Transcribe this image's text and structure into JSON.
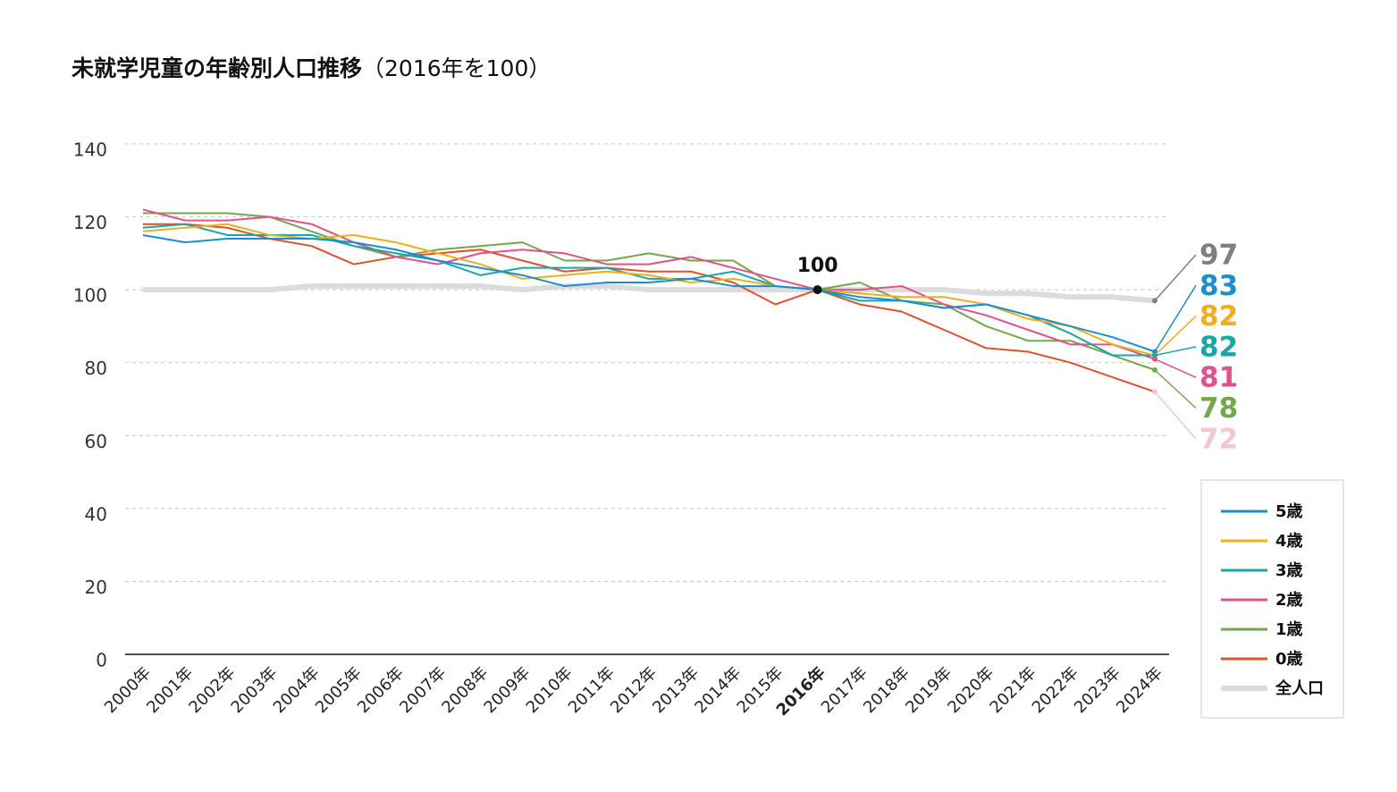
{
  "chart_data": {
    "type": "line",
    "title": "未就学児童の年齢別人口推移",
    "subtitle": "（2016年を100）",
    "categories": [
      "2000年",
      "2001年",
      "2002年",
      "2003年",
      "2004年",
      "2005年",
      "2006年",
      "2007年",
      "2008年",
      "2009年",
      "2010年",
      "2011年",
      "2012年",
      "2013年",
      "2014年",
      "2015年",
      "2016年",
      "2017年",
      "2018年",
      "2019年",
      "2020年",
      "2021年",
      "2022年",
      "2023年",
      "2024年"
    ],
    "ylim": [
      0,
      140
    ],
    "yticks": [
      0,
      20,
      40,
      60,
      80,
      100,
      120,
      140
    ],
    "grid": true,
    "annotation": {
      "category": "2016年",
      "value": 100
    },
    "series": [
      {
        "name": "5歳",
        "color": "#1a8fd0",
        "values": [
          115,
          113,
          114,
          114,
          114,
          113,
          111,
          108,
          106,
          104,
          101,
          102,
          102,
          103,
          101,
          101,
          100,
          98,
          97,
          95,
          96,
          93,
          90,
          87,
          83
        ]
      },
      {
        "name": "4歳",
        "color": "#f2ae18",
        "values": [
          116,
          117,
          118,
          115,
          114,
          115,
          113,
          110,
          107,
          103,
          104,
          105,
          104,
          102,
          103,
          101,
          100,
          99,
          98,
          98,
          96,
          92,
          90,
          85,
          82
        ]
      },
      {
        "name": "3歳",
        "color": "#16a8a8",
        "values": [
          117,
          118,
          115,
          115,
          115,
          112,
          110,
          108,
          104,
          106,
          106,
          106,
          103,
          103,
          105,
          101,
          100,
          97,
          97,
          95,
          96,
          93,
          88,
          82,
          82
        ]
      },
      {
        "name": "2歳",
        "color": "#e3508a",
        "values": [
          122,
          119,
          119,
          120,
          118,
          113,
          109,
          107,
          110,
          111,
          110,
          107,
          107,
          109,
          106,
          103,
          100,
          100,
          101,
          96,
          93,
          89,
          85,
          85,
          81
        ]
      },
      {
        "name": "1歳",
        "color": "#72a84a",
        "values": [
          121,
          121,
          121,
          120,
          116,
          112,
          109,
          111,
          112,
          113,
          108,
          108,
          110,
          108,
          108,
          101,
          100,
          102,
          97,
          96,
          90,
          86,
          86,
          82,
          78
        ]
      },
      {
        "name": "0歳",
        "color": "#e0512f",
        "label_color": "#f5c6cc",
        "values": [
          118,
          118,
          117,
          114,
          112,
          107,
          109,
          110,
          111,
          108,
          105,
          106,
          105,
          105,
          102,
          96,
          100,
          96,
          94,
          89,
          84,
          83,
          80,
          76,
          72
        ]
      },
      {
        "name": "全人口",
        "color": "#dcdcdc",
        "label_color": "#7f7f7f",
        "width": 6,
        "values": [
          100,
          100,
          100,
          100,
          101,
          101,
          101,
          101,
          101,
          100,
          101,
          101,
          100,
          100,
          100,
          100,
          100,
          100,
          100,
          100,
          99,
          99,
          98,
          98,
          97
        ]
      }
    ]
  }
}
